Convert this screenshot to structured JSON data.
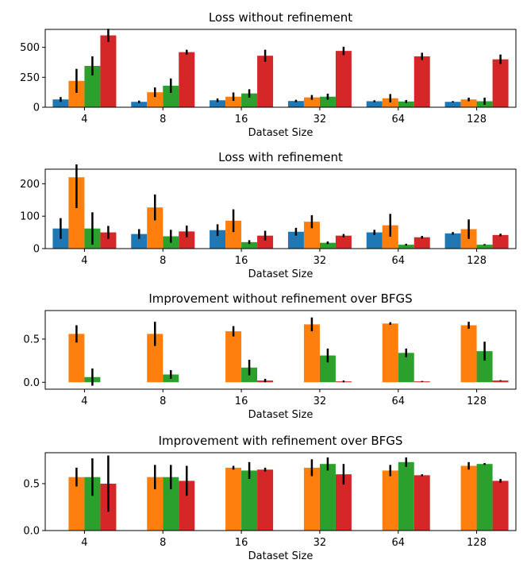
{
  "colors": [
    "#1f77b4",
    "#ff7f0e",
    "#2ca02c",
    "#d62728"
  ],
  "chart_data": [
    {
      "type": "bar",
      "title": "Loss without refinement",
      "xlabel": "Dataset Size",
      "ylabel": "",
      "categories": [
        "4",
        "8",
        "16",
        "32",
        "64",
        "128"
      ],
      "ylim": [
        0,
        650
      ],
      "yticks": [
        0,
        250,
        500
      ],
      "ytick_labels": [
        "0",
        "250",
        "500"
      ],
      "series": [
        {
          "values": [
            65,
            45,
            58,
            52,
            50,
            45
          ],
          "errors": [
            20,
            10,
            15,
            10,
            8,
            6
          ]
        },
        {
          "values": [
            220,
            125,
            88,
            82,
            75,
            65
          ],
          "errors": [
            100,
            40,
            35,
            20,
            35,
            15
          ]
        },
        {
          "values": [
            345,
            180,
            115,
            88,
            48,
            50
          ],
          "errors": [
            80,
            60,
            35,
            25,
            12,
            30
          ]
        },
        {
          "values": [
            600,
            460,
            430,
            470,
            425,
            400
          ],
          "errors": [
            55,
            20,
            50,
            35,
            30,
            40
          ]
        }
      ]
    },
    {
      "type": "bar",
      "title": "Loss with refinement",
      "xlabel": "Dataset Size",
      "ylabel": "",
      "categories": [
        "4",
        "8",
        "16",
        "32",
        "64",
        "128"
      ],
      "ylim": [
        0,
        245
      ],
      "yticks": [
        0,
        100,
        200
      ],
      "ytick_labels": [
        "0",
        "100",
        "200"
      ],
      "series": [
        {
          "values": [
            62,
            45,
            57,
            52,
            50,
            47
          ],
          "errors": [
            32,
            15,
            18,
            12,
            8,
            4
          ]
        },
        {
          "values": [
            220,
            127,
            86,
            83,
            72,
            60
          ],
          "errors": [
            95,
            40,
            35,
            20,
            35,
            30
          ]
        },
        {
          "values": [
            62,
            38,
            20,
            18,
            12,
            12
          ],
          "errors": [
            50,
            20,
            6,
            4,
            3,
            2
          ]
        },
        {
          "values": [
            50,
            53,
            40,
            40,
            35,
            42
          ],
          "errors": [
            20,
            18,
            15,
            5,
            4,
            4
          ]
        }
      ]
    },
    {
      "type": "bar",
      "title": "Improvement without refinement over BFGS",
      "xlabel": "Dataset Size",
      "ylabel": "",
      "categories": [
        "4",
        "8",
        "16",
        "32",
        "64",
        "128"
      ],
      "ylim": [
        -0.08,
        0.83
      ],
      "yticks": [
        0.0,
        0.5
      ],
      "ytick_labels": [
        "0.0",
        "0.5"
      ],
      "series": [
        {
          "values": [
            0,
            0,
            0,
            0,
            0,
            0
          ],
          "errors": [
            0,
            0,
            0,
            0,
            0,
            0
          ]
        },
        {
          "values": [
            0.56,
            0.56,
            0.59,
            0.67,
            0.68,
            0.66
          ],
          "errors": [
            0.1,
            0.14,
            0.06,
            0.08,
            0.015,
            0.04
          ]
        },
        {
          "values": [
            0.06,
            0.09,
            0.17,
            0.31,
            0.34,
            0.36
          ],
          "errors": [
            0.1,
            0.05,
            0.09,
            0.08,
            0.05,
            0.11
          ]
        },
        {
          "values": [
            0,
            0,
            0.02,
            0.01,
            0.01,
            0.02
          ],
          "errors": [
            0,
            0,
            0.02,
            0.01,
            0.005,
            0.005
          ]
        }
      ]
    },
    {
      "type": "bar",
      "title": "Improvement with refinement over BFGS",
      "xlabel": "Dataset Size",
      "ylabel": "",
      "categories": [
        "4",
        "8",
        "16",
        "32",
        "64",
        "128"
      ],
      "ylim": [
        0,
        0.83
      ],
      "yticks": [
        0.0,
        0.5
      ],
      "ytick_labels": [
        "0.0",
        "0.5"
      ],
      "series": [
        {
          "values": [
            0,
            0,
            0,
            0,
            0,
            0
          ],
          "errors": [
            0,
            0,
            0,
            0,
            0,
            0
          ]
        },
        {
          "values": [
            0.57,
            0.57,
            0.67,
            0.67,
            0.64,
            0.69
          ],
          "errors": [
            0.1,
            0.13,
            0.02,
            0.09,
            0.06,
            0.04
          ]
        },
        {
          "values": [
            0.57,
            0.57,
            0.64,
            0.71,
            0.73,
            0.71
          ],
          "errors": [
            0.2,
            0.13,
            0.09,
            0.07,
            0.05,
            0.01
          ]
        },
        {
          "values": [
            0.5,
            0.53,
            0.65,
            0.6,
            0.59,
            0.53
          ],
          "errors": [
            0.3,
            0.16,
            0.02,
            0.11,
            0.01,
            0.02
          ]
        }
      ]
    }
  ]
}
